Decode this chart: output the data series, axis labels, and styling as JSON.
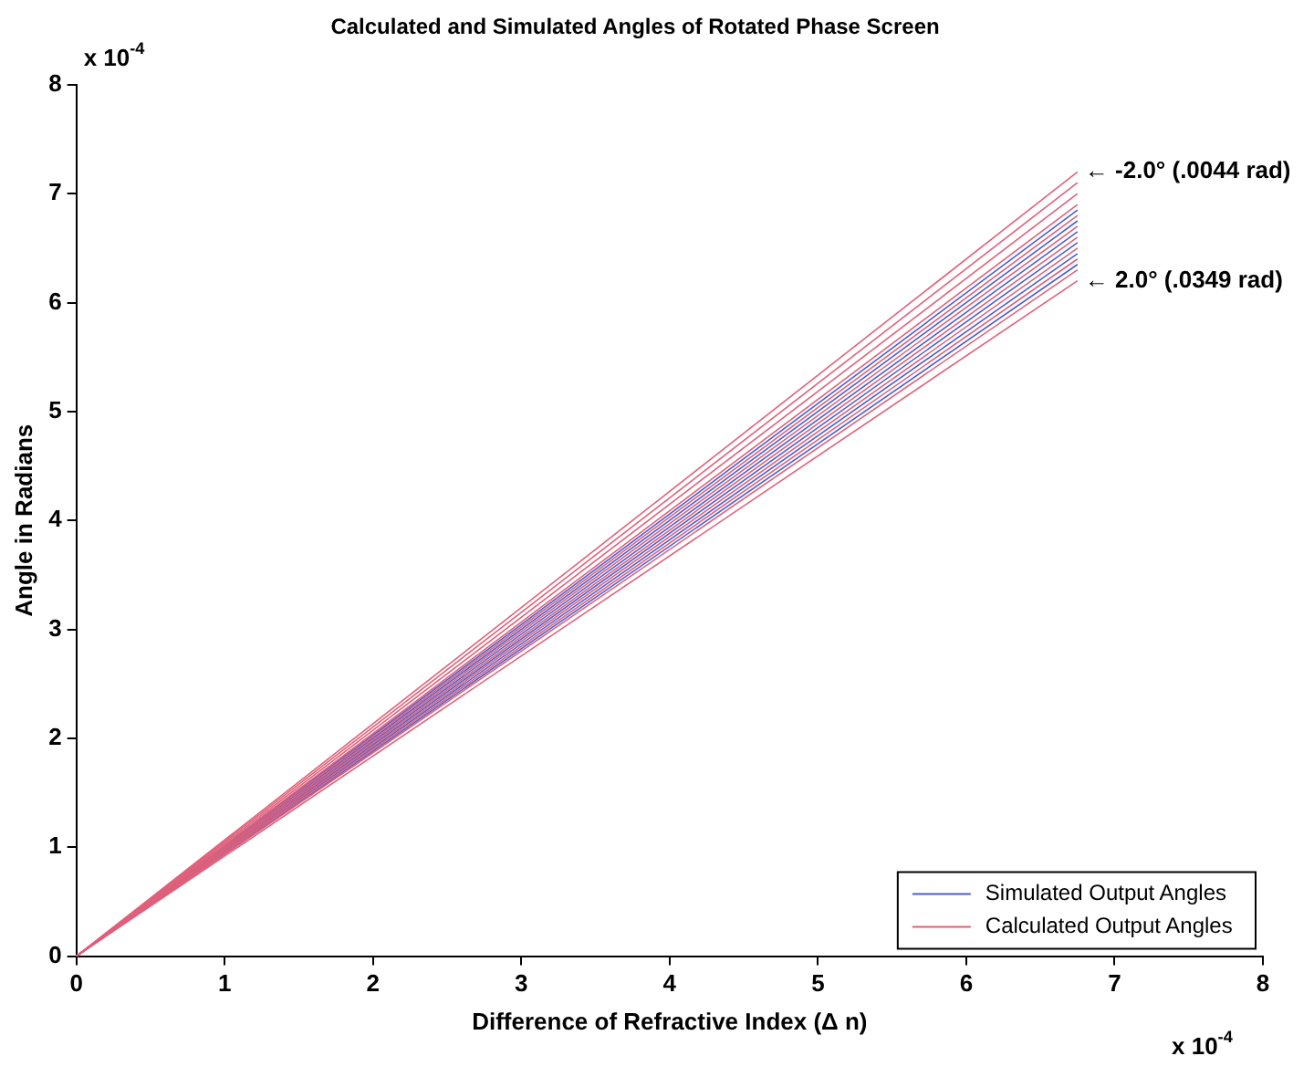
{
  "chart_data": {
    "type": "line",
    "title": "Calculated and Simulated Angles of Rotated Phase Screen",
    "xlabel": "Difference of Refractive Index (Δ n)",
    "ylabel": "Angle in Radians",
    "xlim": [
      0,
      8
    ],
    "ylim": [
      0,
      8
    ],
    "xticks": [
      0,
      1,
      2,
      3,
      4,
      5,
      6,
      7,
      8
    ],
    "yticks": [
      0,
      1,
      2,
      3,
      4,
      5,
      6,
      7,
      8
    ],
    "grid": false,
    "legend": "bottom right",
    "marker": "none",
    "annotations": [
      "x 10$^{-4}$",
      "x 10$^{-4}$",
      {
        "text": "← -2.0° (.0044 rad)",
        "x": 6.75,
        "y": 7.2
      },
      {
        "text": "← 2.0° (.0349 rad)",
        "x": 6.75,
        "y": 6.2
      }
    ],
    "x": [
      0,
      6.75
    ],
    "series": [
      {
        "name": "Calculated Output Angles",
        "color": "#e0607a",
        "values": [
          0,
          7.2
        ]
      },
      {
        "color": "#e0607a",
        "values": [
          0,
          7.1
        ]
      },
      {
        "color": "#e0607a",
        "values": [
          0,
          7.0
        ]
      },
      {
        "color": "#e0607a",
        "values": [
          0,
          6.9
        ]
      },
      {
        "color": "#e0607a",
        "values": [
          0,
          6.8
        ]
      },
      {
        "color": "#e0607a",
        "values": [
          0,
          6.7
        ]
      },
      {
        "color": "#e0607a",
        "values": [
          0,
          6.6
        ]
      },
      {
        "color": "#e0607a",
        "values": [
          0,
          6.5
        ]
      },
      {
        "color": "#e0607a",
        "values": [
          0,
          6.4
        ]
      },
      {
        "color": "#e0607a",
        "values": [
          0,
          6.3
        ]
      },
      {
        "color": "#e0607a",
        "values": [
          0,
          6.2
        ]
      },
      {
        "name": "Simulated Output Angles",
        "color": "#4a5fd0",
        "values": [
          0,
          6.85
        ]
      },
      {
        "color": "#4a5fd0",
        "values": [
          0,
          6.75
        ]
      },
      {
        "color": "#4a5fd0",
        "values": [
          0,
          6.65
        ]
      },
      {
        "color": "#4a5fd0",
        "values": [
          0,
          6.55
        ]
      },
      {
        "color": "#4a5fd0",
        "values": [
          0,
          6.45
        ]
      },
      {
        "color": "#4a5fd0",
        "values": [
          0,
          6.35
        ]
      }
    ]
  }
}
